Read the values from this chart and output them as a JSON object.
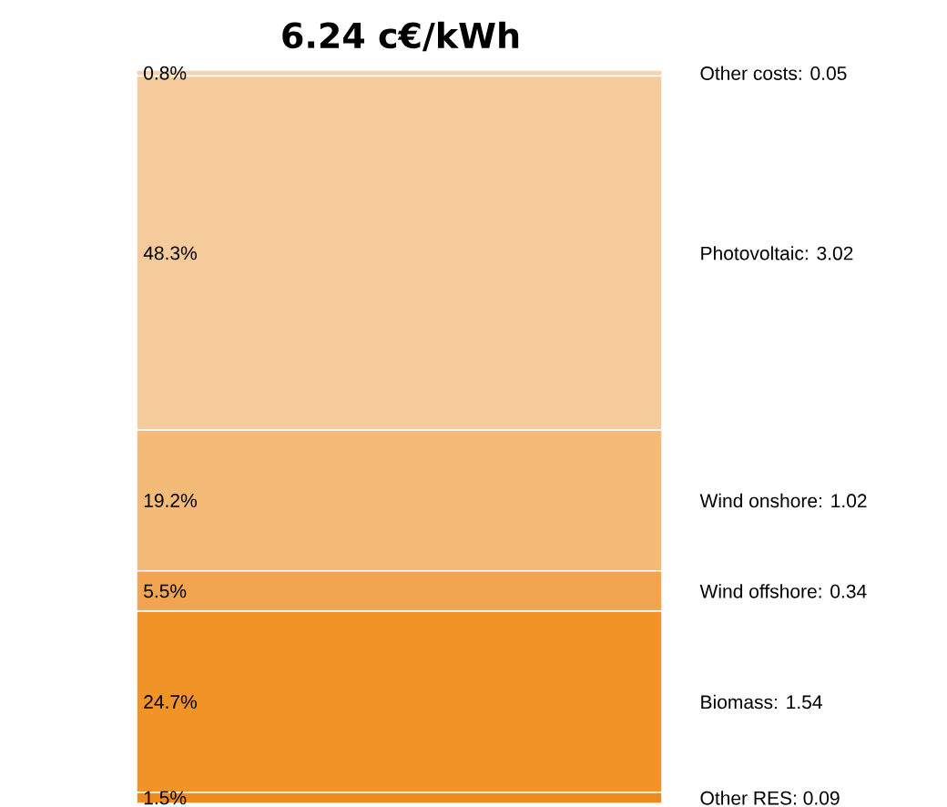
{
  "chart_data": {
    "type": "bar",
    "stacked": true,
    "title": "6.24 c€/kWh",
    "categories": [
      null
    ],
    "series": [
      {
        "name": "Other RES: 0.09",
        "color": "#ee8a1c",
        "values": [
          1.5
        ],
        "value_labels": [
          "1.5%"
        ]
      },
      {
        "name": "Biomass: 1.54",
        "color": "#f09428",
        "values": [
          24.7
        ],
        "value_labels": [
          "24.7%"
        ]
      },
      {
        "name": "Wind offshore: 0.34",
        "color": "#f2a550",
        "values": [
          5.5
        ],
        "value_labels": [
          "5.5%"
        ]
      },
      {
        "name": "Wind onshore: 1.02",
        "color": "#f4bb78",
        "values": [
          19.2
        ],
        "value_labels": [
          "19.2%"
        ]
      },
      {
        "name": "Photovoltaic: 3.02",
        "color": "#f6cb9c",
        "values": [
          48.3
        ],
        "value_labels": [
          "48.3%"
        ]
      },
      {
        "name": "Other costs: 0.05",
        "color": "#f8d2ae",
        "values": [
          0.8
        ],
        "value_labels": [
          "0.8%"
        ]
      }
    ]
  }
}
